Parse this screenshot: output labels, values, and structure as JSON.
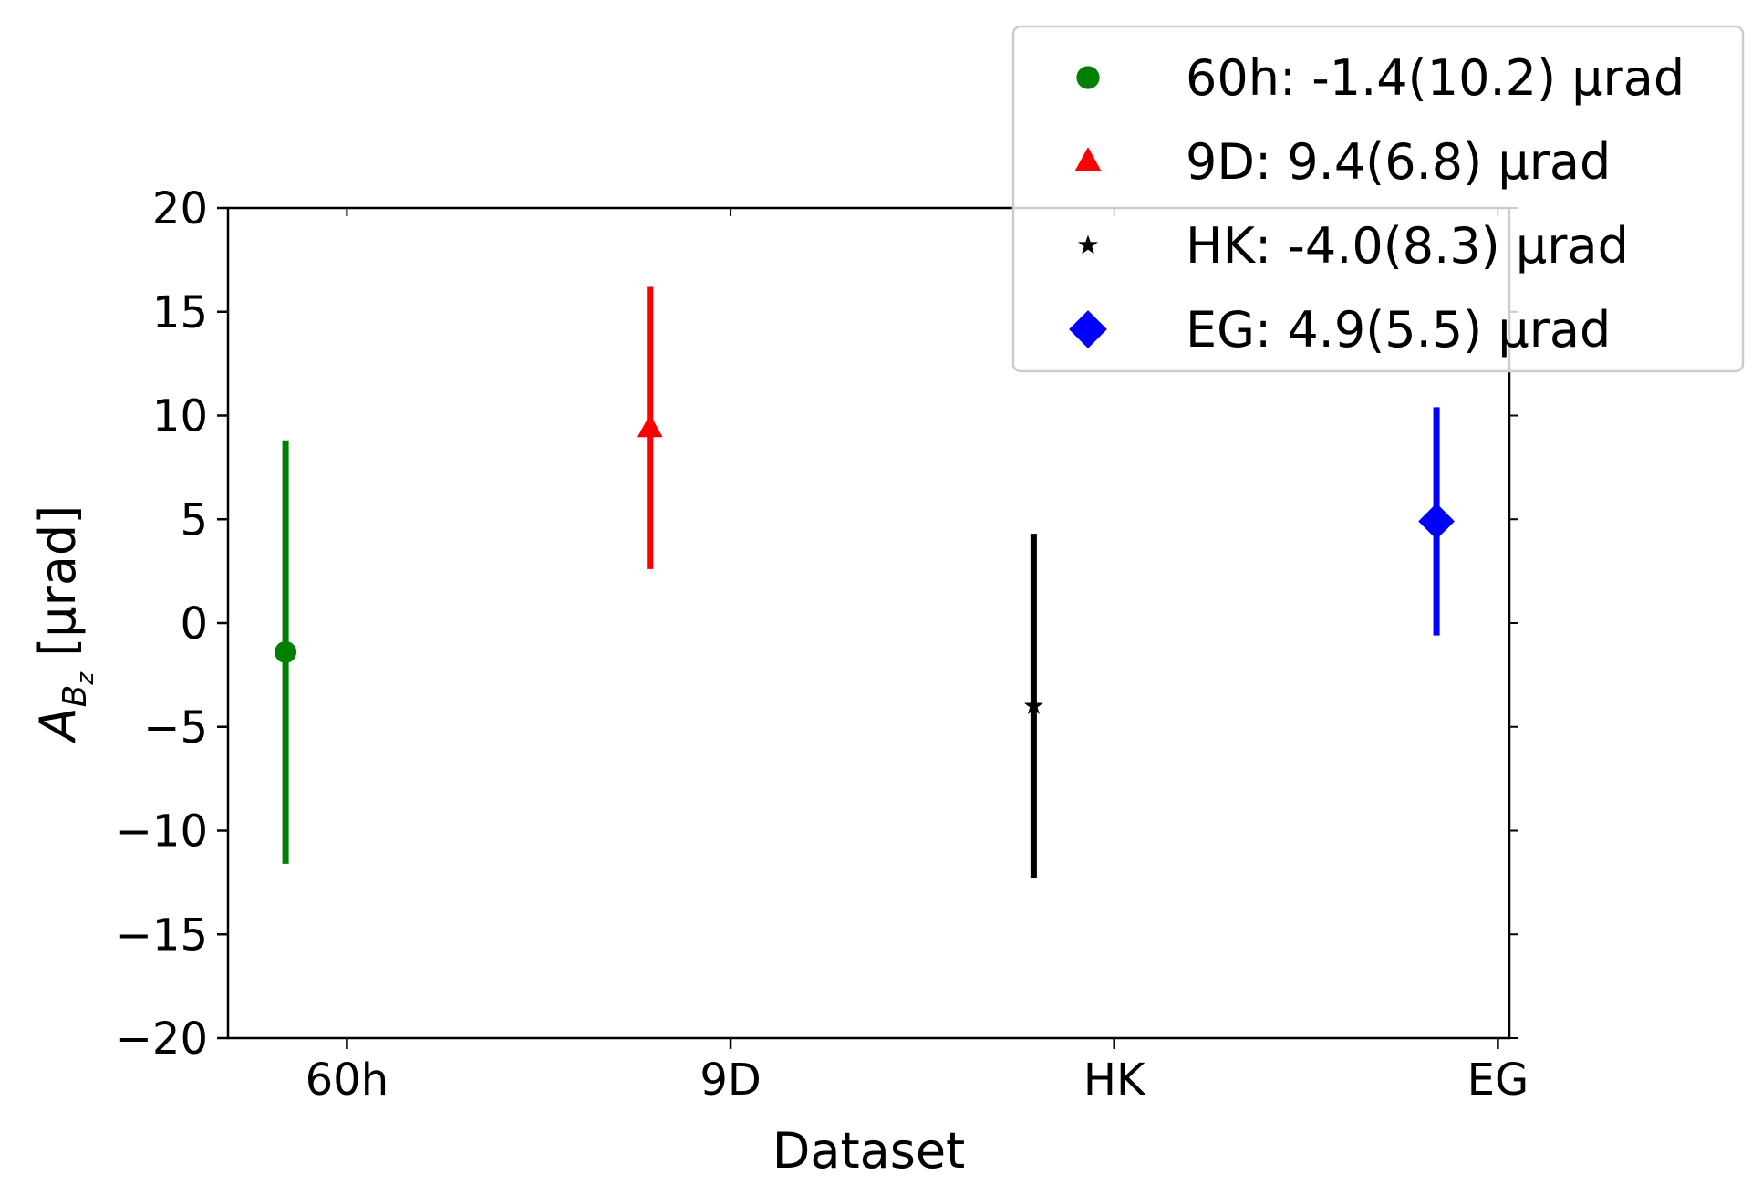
{
  "chart_data": {
    "type": "scatter",
    "xlabel": "Dataset",
    "ylabel": {
      "symbol": "A",
      "subscript": "B",
      "subsubscript": "z",
      "unit": "[µrad]"
    },
    "categories": [
      "60h",
      "9D",
      "HK",
      "EG"
    ],
    "ylim": [
      -20,
      20
    ],
    "yticks": [
      "20",
      "15",
      "10",
      "5",
      "0",
      "−5",
      "−10",
      "−15",
      "−20"
    ],
    "ytick_values": [
      20,
      15,
      10,
      5,
      0,
      -5,
      -10,
      -15,
      -20
    ],
    "grid": false,
    "legend_position": "top-right",
    "series": [
      {
        "name": "60h: -1.4(10.2) µrad",
        "x": -0.16,
        "value": -1.4,
        "error": 10.2,
        "color": "#008000",
        "marker": "circle"
      },
      {
        "name": "9D: 9.4(6.8) µrad",
        "x": 0.79,
        "value": 9.4,
        "error": 6.8,
        "color": "#ff0000",
        "marker": "triangle"
      },
      {
        "name": "HK: -4.0(8.3) µrad",
        "x": 1.79,
        "value": -4.0,
        "error": 8.3,
        "color": "#000000",
        "marker": "star"
      },
      {
        "name": "EG: 4.9(5.5) µrad",
        "x": 2.84,
        "value": 4.9,
        "error": 5.5,
        "color": "#0000ff",
        "marker": "diamond"
      }
    ]
  }
}
